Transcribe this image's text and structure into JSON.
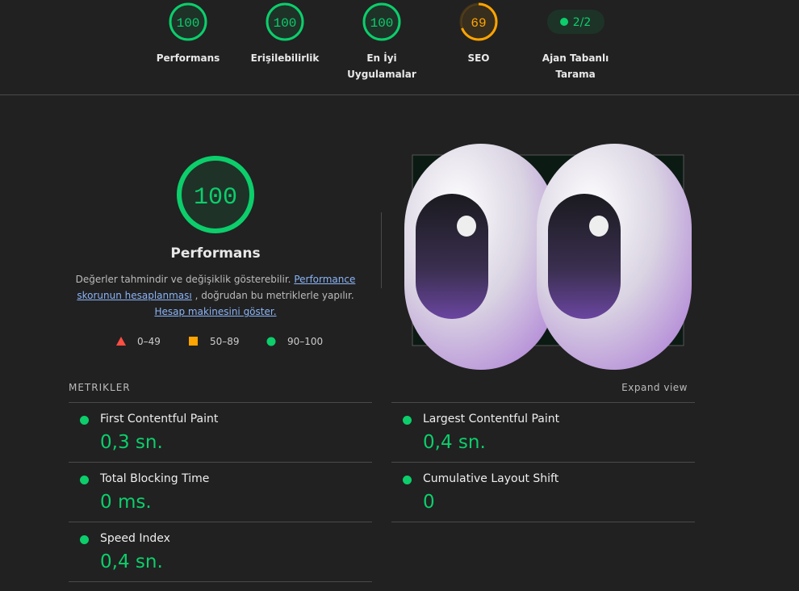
{
  "top_gauges": [
    {
      "score": 100,
      "label": "Performans",
      "color": "#0cce6b"
    },
    {
      "score": 100,
      "label": "Erişilebilirlik",
      "color": "#0cce6b"
    },
    {
      "score": 100,
      "label": "En İyi Uygulamalar",
      "color": "#0cce6b"
    },
    {
      "score": 69,
      "label": "SEO",
      "color": "#ffa400"
    }
  ],
  "agent_badge": {
    "text": "2/2",
    "label": "Ajan Tabanlı Tarama"
  },
  "main": {
    "score": 100,
    "color": "#0cce6b",
    "title": "Performans",
    "description": {
      "text1": "Değerler tahmindir ve değişiklik gösterebilir.",
      "link1": "Performance skorunun hesaplanması",
      "text2": ", doğrudan bu metriklerle yapılır.",
      "link2": "Hesap makinesini göster."
    },
    "legend": [
      "0–49",
      "50–89",
      "90–100"
    ]
  },
  "metrics": {
    "title": "METRIKLER",
    "expand": "Expand view",
    "items": [
      {
        "name": "First Contentful Paint",
        "value": "0,3 sn."
      },
      {
        "name": "Largest Contentful Paint",
        "value": "0,4 sn."
      },
      {
        "name": "Total Blocking Time",
        "value": "0 ms."
      },
      {
        "name": "Cumulative Layout Shift",
        "value": "0"
      },
      {
        "name": "Speed Index",
        "value": "0,4 sn."
      }
    ]
  }
}
